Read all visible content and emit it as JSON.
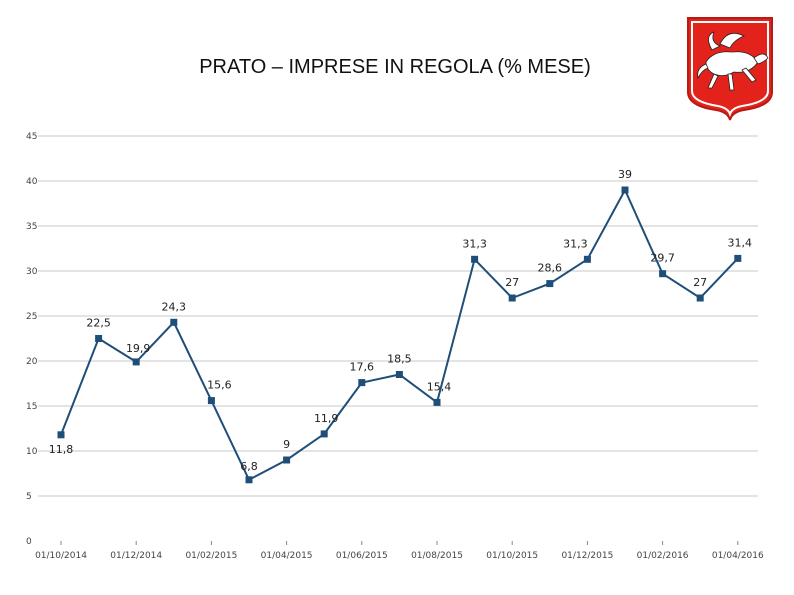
{
  "title": "PRATO – IMPRESE IN REGOLA (% MESE)",
  "logo": {
    "icon": "tuscany-pegasus-emblem-icon",
    "color": "#e3231b"
  },
  "chart_data": {
    "type": "line",
    "title": "PRATO – IMPRESE IN REGOLA (% MESE)",
    "xlabel": "",
    "ylabel": "",
    "ylim": [
      0,
      45
    ],
    "yticks": [
      "0",
      "5",
      "10",
      "15",
      "20",
      "25",
      "30",
      "35",
      "40",
      "45"
    ],
    "xticks": [
      "01/10/2014",
      "01/12/2014",
      "01/02/2015",
      "01/04/2015",
      "01/06/2015",
      "01/08/2015",
      "01/10/2015",
      "01/12/2015",
      "01/02/2016",
      "01/04/2016"
    ],
    "grid": true,
    "legend": "none",
    "color": "#1f4e79",
    "series": [
      {
        "dates": [
          "2014-10",
          "2014-11",
          "2014-12",
          "2015-01",
          "2015-02",
          "2015-03",
          "2015-04",
          "2015-05",
          "2015-06",
          "2015-07",
          "2015-08",
          "2015-09",
          "2015-10",
          "2015-11",
          "2015-12",
          "2016-01",
          "2016-02",
          "2016-03",
          "2016-04"
        ],
        "values": [
          11.8,
          22.5,
          19.9,
          24.3,
          15.6,
          6.8,
          9,
          11.9,
          17.6,
          18.5,
          15.4,
          31.3,
          27,
          28.6,
          31.3,
          39,
          29.7,
          27,
          31.4
        ],
        "labels": [
          "11,8",
          "22,5",
          "19,9",
          "24,3",
          "15,6",
          "6,8",
          "9",
          "11,9",
          "17,6",
          "18,5",
          "15,4",
          "31,3",
          "27",
          "28,6",
          "31,3",
          "39",
          "29,7",
          "27",
          "31,4"
        ]
      }
    ]
  }
}
